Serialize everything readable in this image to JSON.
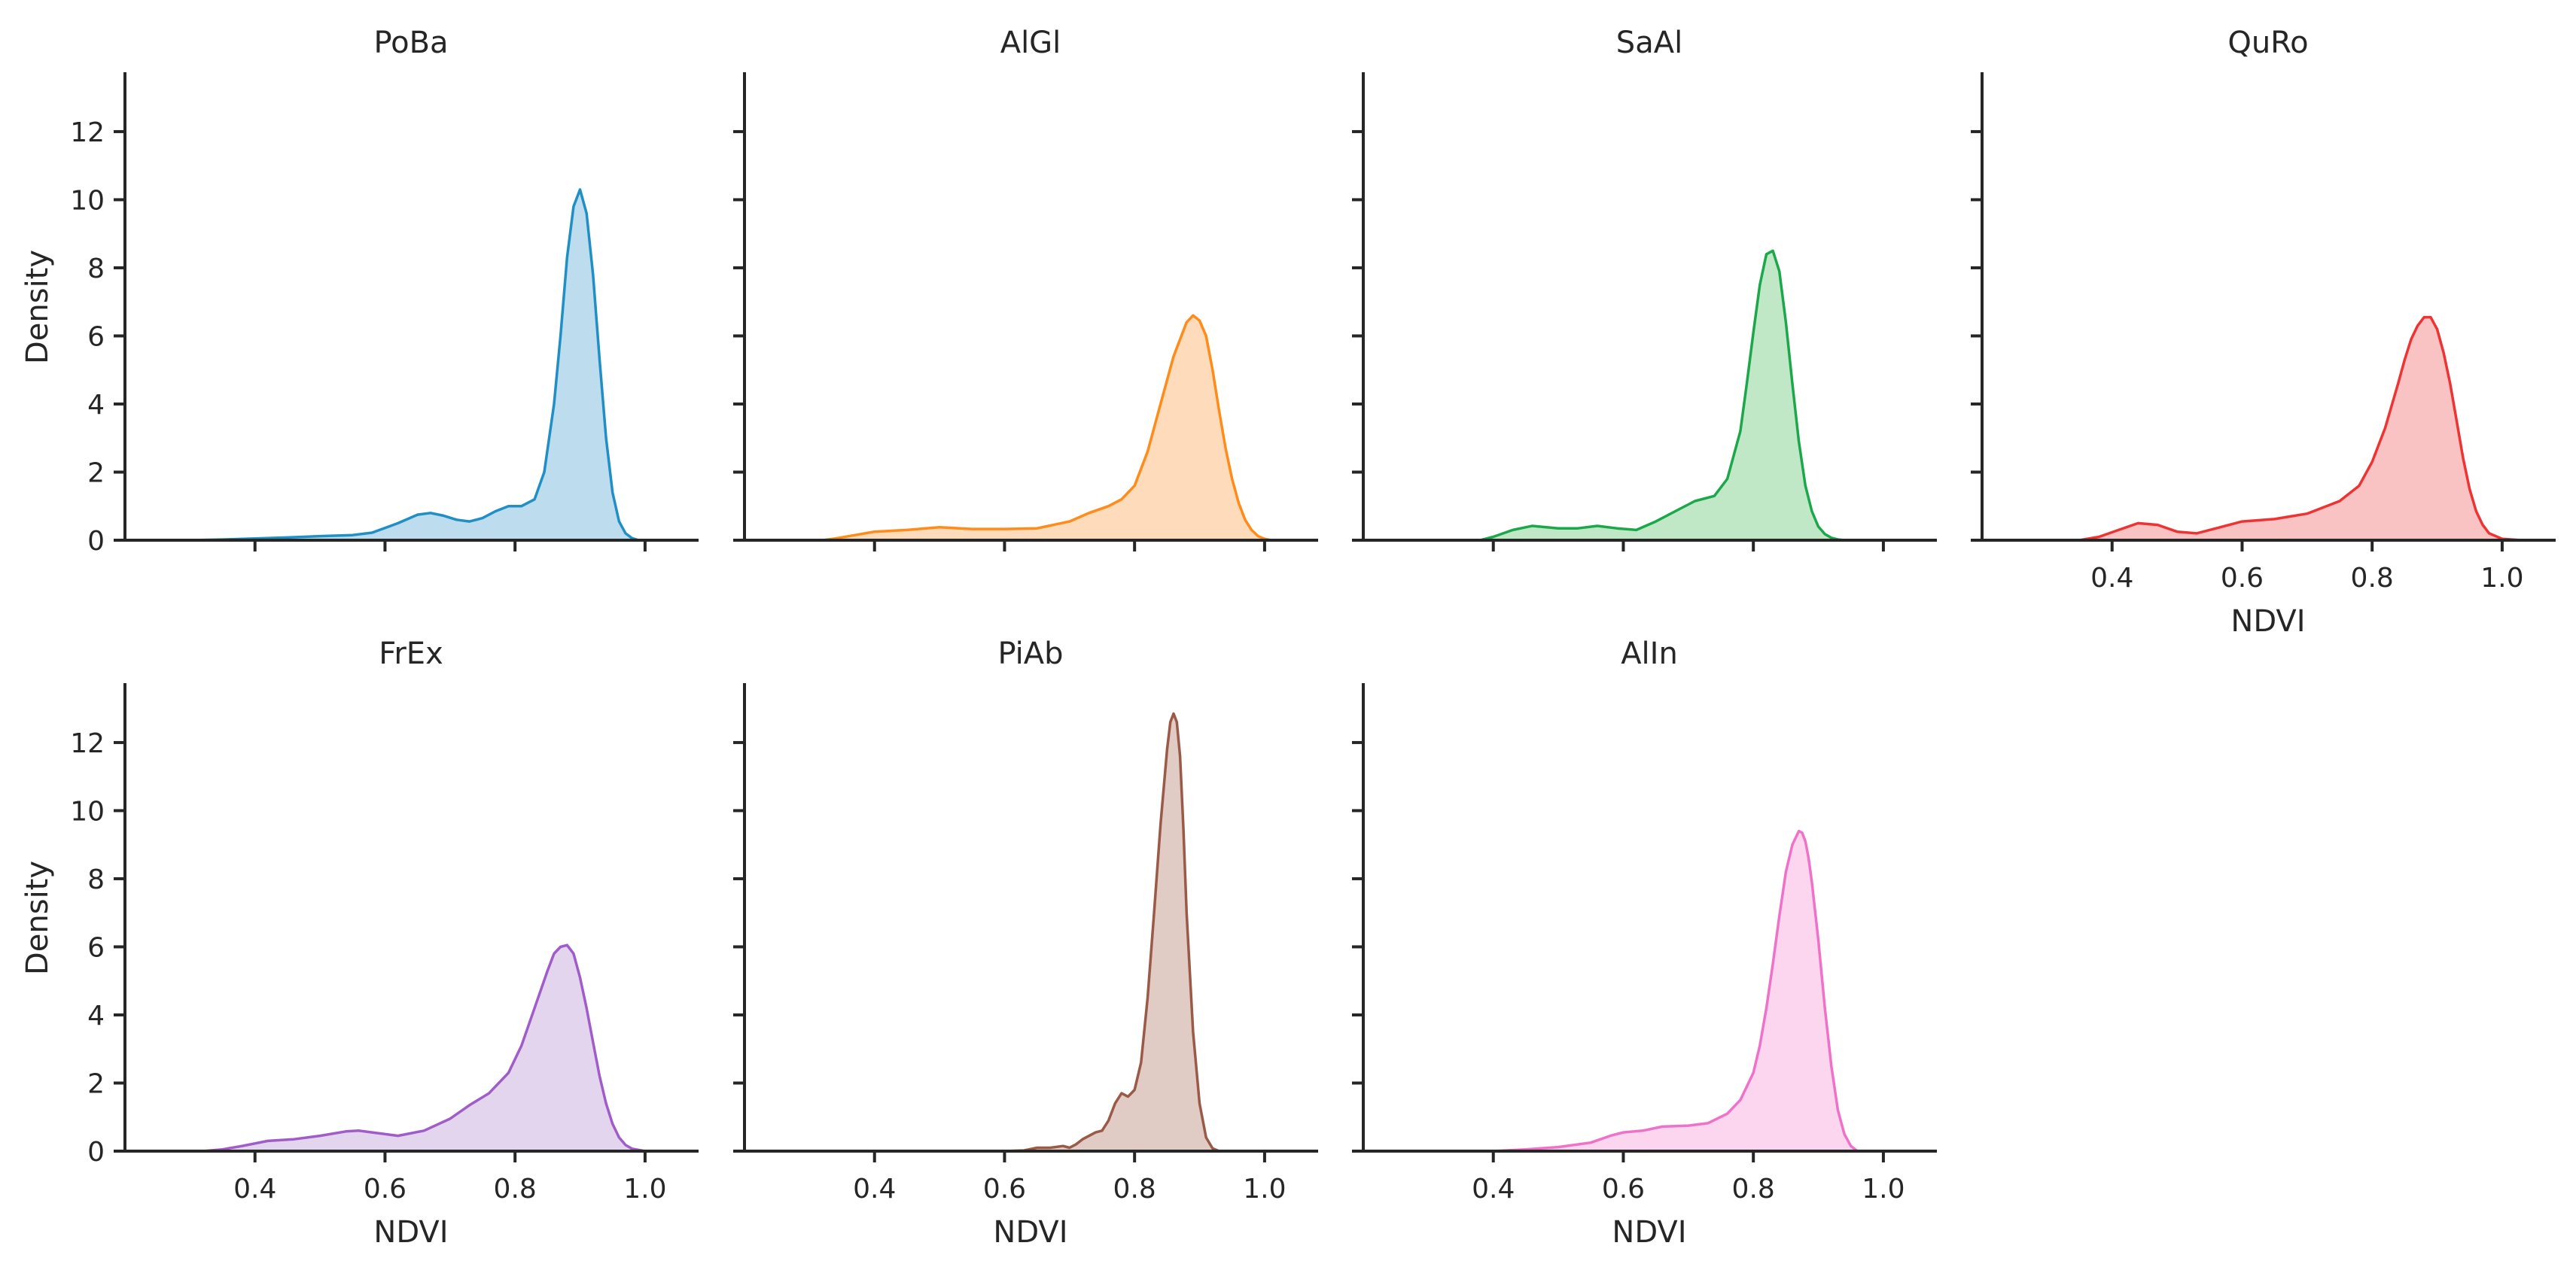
{
  "chart_data": {
    "type": "area",
    "kind": "kde",
    "layout": "facet-grid",
    "xlabel": "NDVI",
    "ylabel": "Density",
    "xlim": [
      0.2,
      1.08
    ],
    "ylim": [
      0,
      13.7
    ],
    "xticks": [
      0.4,
      0.6,
      0.8,
      1.0
    ],
    "xtick_labels": [
      "0.4",
      "0.6",
      "0.8",
      "1.0"
    ],
    "yticks": [
      0,
      2,
      4,
      6,
      8,
      10,
      12
    ],
    "ytick_labels": [
      "0",
      "2",
      "4",
      "6",
      "8",
      "10",
      "12"
    ],
    "panels": [
      {
        "title": "PoBa",
        "color": "#1f8fc6",
        "fill": "#bddcee",
        "show_ylabel": true,
        "show_xlabel": false,
        "x": [
          0.3,
          0.35,
          0.4,
          0.45,
          0.5,
          0.55,
          0.58,
          0.62,
          0.65,
          0.67,
          0.69,
          0.71,
          0.73,
          0.75,
          0.77,
          0.79,
          0.81,
          0.83,
          0.845,
          0.86,
          0.87,
          0.88,
          0.89,
          0.9,
          0.91,
          0.92,
          0.93,
          0.94,
          0.95,
          0.96,
          0.97,
          0.98,
          0.99
        ],
        "y": [
          0,
          0.02,
          0.05,
          0.08,
          0.12,
          0.15,
          0.22,
          0.5,
          0.75,
          0.8,
          0.72,
          0.6,
          0.55,
          0.65,
          0.85,
          1.0,
          1.0,
          1.2,
          2.0,
          4.0,
          6.0,
          8.3,
          9.8,
          10.3,
          9.6,
          7.8,
          5.3,
          3.0,
          1.4,
          0.55,
          0.2,
          0.06,
          0
        ]
      },
      {
        "title": "AlGl",
        "color": "#ff8c1a",
        "fill": "#fddbbb",
        "show_ylabel": false,
        "show_xlabel": false,
        "x": [
          0.32,
          0.34,
          0.37,
          0.4,
          0.45,
          0.5,
          0.55,
          0.6,
          0.65,
          0.7,
          0.73,
          0.76,
          0.78,
          0.8,
          0.82,
          0.84,
          0.86,
          0.88,
          0.89,
          0.9,
          0.91,
          0.92,
          0.93,
          0.94,
          0.95,
          0.96,
          0.97,
          0.98,
          0.99,
          1.0,
          1.01
        ],
        "y": [
          0,
          0.05,
          0.15,
          0.25,
          0.3,
          0.38,
          0.33,
          0.33,
          0.35,
          0.55,
          0.8,
          1.0,
          1.2,
          1.6,
          2.6,
          4.0,
          5.4,
          6.4,
          6.6,
          6.45,
          6.0,
          5.0,
          3.8,
          2.7,
          1.8,
          1.1,
          0.6,
          0.3,
          0.12,
          0.04,
          0
        ]
      },
      {
        "title": "SaAl",
        "color": "#1ca84a",
        "fill": "#c0e8c6",
        "show_ylabel": false,
        "show_xlabel": false,
        "x": [
          0.38,
          0.4,
          0.43,
          0.46,
          0.5,
          0.53,
          0.56,
          0.59,
          0.62,
          0.65,
          0.68,
          0.71,
          0.74,
          0.76,
          0.78,
          0.79,
          0.8,
          0.81,
          0.82,
          0.83,
          0.84,
          0.85,
          0.86,
          0.87,
          0.88,
          0.89,
          0.9,
          0.91,
          0.92,
          0.93,
          0.94
        ],
        "y": [
          0,
          0.1,
          0.3,
          0.42,
          0.35,
          0.35,
          0.42,
          0.35,
          0.3,
          0.55,
          0.85,
          1.15,
          1.3,
          1.8,
          3.2,
          4.6,
          6.1,
          7.5,
          8.4,
          8.5,
          7.9,
          6.4,
          4.6,
          2.9,
          1.6,
          0.85,
          0.4,
          0.18,
          0.07,
          0.02,
          0
        ]
      },
      {
        "title": "QuRo",
        "color": "#ee3333",
        "fill": "#fac3c3",
        "show_ylabel": false,
        "show_xlabel": true,
        "x": [
          0.35,
          0.38,
          0.41,
          0.44,
          0.47,
          0.5,
          0.53,
          0.56,
          0.6,
          0.65,
          0.7,
          0.75,
          0.78,
          0.8,
          0.82,
          0.84,
          0.85,
          0.86,
          0.87,
          0.88,
          0.89,
          0.9,
          0.91,
          0.92,
          0.93,
          0.94,
          0.95,
          0.96,
          0.97,
          0.98,
          1.0,
          1.03
        ],
        "y": [
          0,
          0.1,
          0.3,
          0.5,
          0.45,
          0.25,
          0.2,
          0.35,
          0.55,
          0.62,
          0.78,
          1.15,
          1.6,
          2.3,
          3.3,
          4.6,
          5.3,
          5.9,
          6.3,
          6.55,
          6.55,
          6.2,
          5.5,
          4.6,
          3.5,
          2.4,
          1.5,
          0.85,
          0.45,
          0.2,
          0.04,
          0
        ]
      },
      {
        "title": "FrEx",
        "color": "#a05cc8",
        "fill": "#e4d5ee",
        "show_ylabel": true,
        "show_xlabel": true,
        "x": [
          0.32,
          0.35,
          0.38,
          0.42,
          0.46,
          0.5,
          0.54,
          0.56,
          0.58,
          0.62,
          0.66,
          0.7,
          0.73,
          0.76,
          0.79,
          0.81,
          0.83,
          0.85,
          0.86,
          0.87,
          0.88,
          0.89,
          0.9,
          0.91,
          0.92,
          0.93,
          0.94,
          0.95,
          0.96,
          0.97,
          0.98,
          1.0
        ],
        "y": [
          0,
          0.05,
          0.15,
          0.3,
          0.35,
          0.45,
          0.58,
          0.6,
          0.55,
          0.45,
          0.6,
          0.95,
          1.35,
          1.7,
          2.3,
          3.1,
          4.2,
          5.3,
          5.8,
          6.0,
          6.05,
          5.8,
          5.1,
          4.2,
          3.2,
          2.2,
          1.4,
          0.8,
          0.4,
          0.18,
          0.07,
          0
        ]
      },
      {
        "title": "PiAb",
        "color": "#9b5a47",
        "fill": "#e0cbc5",
        "show_ylabel": false,
        "show_xlabel": true,
        "x": [
          0.6,
          0.63,
          0.65,
          0.67,
          0.69,
          0.7,
          0.71,
          0.72,
          0.74,
          0.75,
          0.76,
          0.77,
          0.78,
          0.79,
          0.8,
          0.81,
          0.82,
          0.83,
          0.84,
          0.85,
          0.855,
          0.86,
          0.865,
          0.87,
          0.875,
          0.88,
          0.89,
          0.9,
          0.91,
          0.92,
          0.93
        ],
        "y": [
          0,
          0.02,
          0.1,
          0.1,
          0.15,
          0.1,
          0.2,
          0.35,
          0.55,
          0.6,
          0.9,
          1.4,
          1.7,
          1.6,
          1.8,
          2.6,
          4.5,
          7.0,
          9.6,
          11.8,
          12.6,
          12.85,
          12.6,
          11.6,
          9.5,
          7.0,
          3.5,
          1.4,
          0.4,
          0.08,
          0
        ]
      },
      {
        "title": "AlIn",
        "color": "#f072c8",
        "fill": "#fcd6ef",
        "show_ylabel": false,
        "show_xlabel": true,
        "x": [
          0.4,
          0.45,
          0.5,
          0.55,
          0.58,
          0.6,
          0.63,
          0.66,
          0.7,
          0.73,
          0.76,
          0.78,
          0.8,
          0.81,
          0.82,
          0.83,
          0.84,
          0.85,
          0.86,
          0.87,
          0.875,
          0.88,
          0.885,
          0.89,
          0.9,
          0.91,
          0.92,
          0.93,
          0.94,
          0.95,
          0.96
        ],
        "y": [
          0,
          0.05,
          0.12,
          0.25,
          0.45,
          0.55,
          0.6,
          0.72,
          0.75,
          0.82,
          1.1,
          1.5,
          2.3,
          3.1,
          4.2,
          5.5,
          6.9,
          8.2,
          9.0,
          9.4,
          9.35,
          9.1,
          8.6,
          7.9,
          6.2,
          4.2,
          2.5,
          1.2,
          0.5,
          0.15,
          0
        ]
      }
    ]
  }
}
